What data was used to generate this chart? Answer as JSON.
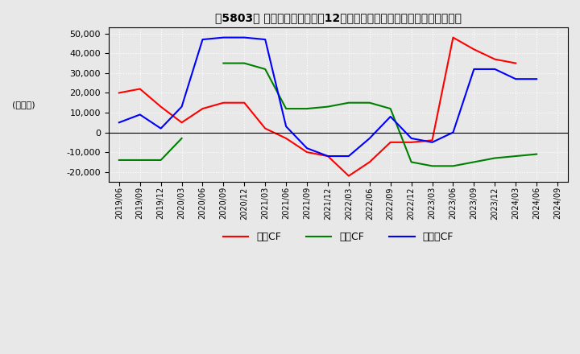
{
  "title": "【5803】 キャッシュフローの12か月移動合計の対前年同期増減額の推移",
  "ylabel": "(百万円)",
  "ylim": [
    -25000,
    53000
  ],
  "yticks": [
    -20000,
    -10000,
    0,
    10000,
    20000,
    30000,
    40000,
    50000
  ],
  "dates": [
    "2019/06",
    "2019/09",
    "2019/12",
    "2020/03",
    "2020/06",
    "2020/09",
    "2020/12",
    "2021/03",
    "2021/06",
    "2021/09",
    "2021/12",
    "2022/03",
    "2022/06",
    "2022/09",
    "2022/12",
    "2023/03",
    "2023/06",
    "2023/09",
    "2023/12",
    "2024/03",
    "2024/06",
    "2024/09"
  ],
  "eigyo_cf": [
    20000,
    22000,
    13000,
    5000,
    12000,
    15000,
    15000,
    2000,
    -3000,
    -10000,
    -12000,
    -22000,
    -15000,
    -5000,
    -5000,
    -4000,
    48000,
    42000,
    37000,
    35000,
    null,
    null
  ],
  "toshi_cf": [
    -14000,
    -14000,
    -14000,
    -3000,
    null,
    35000,
    35000,
    32000,
    12000,
    12000,
    13000,
    15000,
    15000,
    12000,
    -15000,
    -17000,
    -17000,
    -15000,
    -13000,
    -12000,
    -11000,
    null
  ],
  "free_cf": [
    5000,
    9000,
    2000,
    13000,
    47000,
    48000,
    48000,
    47000,
    3000,
    -8000,
    -12000,
    -12000,
    -3000,
    8000,
    -3000,
    -5000,
    0,
    32000,
    32000,
    27000,
    27000,
    null
  ],
  "eigyo_color": "#ff0000",
  "toshi_color": "#008000",
  "free_color": "#0000ff",
  "bg_color": "#e8e8e8",
  "grid_color": "#ffffff",
  "legend_labels": [
    "営業CF",
    "投賃CF",
    "フリーCF"
  ]
}
